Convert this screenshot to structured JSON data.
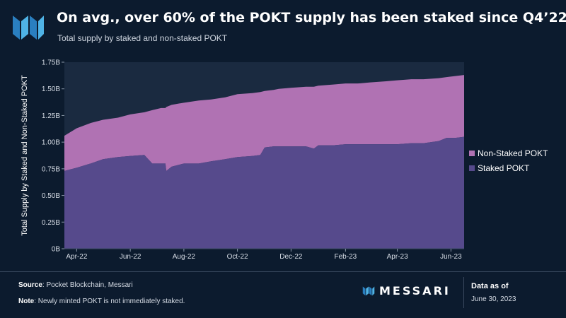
{
  "header": {
    "title": "On avg., over 60% of the POKT supply has been staked since Q4’22",
    "subtitle": "Total supply by staked and non-staked POKT"
  },
  "colors": {
    "background": "#0c1b2e",
    "non_staked": "#b072b3",
    "staked": "#564a8c",
    "accent": "#4fb3e6"
  },
  "chart_data": {
    "type": "area",
    "stacked": true,
    "title": "Total supply by staked and non-staked POKT",
    "ylabel": "Total Supply by Staked and Non-Staked POKT",
    "xlabel": "",
    "ylim": [
      0,
      1.75
    ],
    "xlim": [
      "2022-04-01",
      "2023-06-30"
    ],
    "y_ticks": [
      {
        "value": 0,
        "label": "0B"
      },
      {
        "value": 0.25,
        "label": "0.25B"
      },
      {
        "value": 0.5,
        "label": "0.50B"
      },
      {
        "value": 0.75,
        "label": "0.75B"
      },
      {
        "value": 1.0,
        "label": "1.00B"
      },
      {
        "value": 1.25,
        "label": "1.25B"
      },
      {
        "value": 1.5,
        "label": "1.50B"
      },
      {
        "value": 1.75,
        "label": "1.75B"
      }
    ],
    "x_ticks": [
      {
        "date": "2022-04-15",
        "label": "Apr-22"
      },
      {
        "date": "2022-06-15",
        "label": "Jun-22"
      },
      {
        "date": "2022-08-15",
        "label": "Aug-22"
      },
      {
        "date": "2022-10-15",
        "label": "Oct-22"
      },
      {
        "date": "2022-12-15",
        "label": "Dec-22"
      },
      {
        "date": "2023-02-15",
        "label": "Feb-23"
      },
      {
        "date": "2023-04-15",
        "label": "Apr-23"
      },
      {
        "date": "2023-06-15",
        "label": "Jun-23"
      }
    ],
    "units": "billion POKT",
    "x": [
      "2022-04-01",
      "2022-04-15",
      "2022-05-01",
      "2022-05-15",
      "2022-06-01",
      "2022-06-15",
      "2022-07-01",
      "2022-07-10",
      "2022-07-20",
      "2022-07-25",
      "2022-07-26",
      "2022-08-01",
      "2022-08-15",
      "2022-09-01",
      "2022-09-15",
      "2022-10-01",
      "2022-10-15",
      "2022-11-01",
      "2022-11-10",
      "2022-11-15",
      "2022-11-25",
      "2022-12-01",
      "2022-12-15",
      "2023-01-01",
      "2023-01-10",
      "2023-01-15",
      "2023-02-01",
      "2023-02-15",
      "2023-03-01",
      "2023-03-15",
      "2023-04-01",
      "2023-04-15",
      "2023-05-01",
      "2023-05-15",
      "2023-06-01",
      "2023-06-10",
      "2023-06-20",
      "2023-06-30"
    ],
    "series": [
      {
        "name": "Staked POKT",
        "values": [
          0.73,
          0.76,
          0.8,
          0.84,
          0.86,
          0.87,
          0.88,
          0.8,
          0.8,
          0.8,
          0.73,
          0.77,
          0.8,
          0.8,
          0.82,
          0.84,
          0.86,
          0.87,
          0.88,
          0.95,
          0.96,
          0.96,
          0.96,
          0.96,
          0.94,
          0.97,
          0.97,
          0.98,
          0.98,
          0.98,
          0.98,
          0.98,
          0.99,
          0.99,
          1.01,
          1.04,
          1.04,
          1.05
        ]
      },
      {
        "name": "Non-Staked POKT",
        "values": [
          0.33,
          0.37,
          0.38,
          0.37,
          0.37,
          0.39,
          0.4,
          0.5,
          0.52,
          0.52,
          0.6,
          0.58,
          0.57,
          0.59,
          0.58,
          0.58,
          0.59,
          0.59,
          0.59,
          0.53,
          0.53,
          0.54,
          0.55,
          0.56,
          0.58,
          0.56,
          0.57,
          0.57,
          0.57,
          0.58,
          0.59,
          0.6,
          0.6,
          0.6,
          0.59,
          0.57,
          0.58,
          0.58
        ]
      }
    ],
    "totals": [
      1.06,
      1.13,
      1.18,
      1.21,
      1.23,
      1.26,
      1.28,
      1.3,
      1.32,
      1.32,
      1.33,
      1.35,
      1.37,
      1.39,
      1.4,
      1.42,
      1.45,
      1.46,
      1.47,
      1.48,
      1.49,
      1.5,
      1.51,
      1.52,
      1.52,
      1.53,
      1.54,
      1.55,
      1.55,
      1.56,
      1.57,
      1.58,
      1.59,
      1.59,
      1.6,
      1.61,
      1.62,
      1.63
    ],
    "legend": [
      "Non-Staked POKT",
      "Staked POKT"
    ],
    "legend_position": "right",
    "grid": false
  },
  "footer": {
    "source_label": "Source",
    "source_text": ": Pocket Blockchain, Messari",
    "note_label": "Note",
    "note_text": ": Newly minted POKT is not immediately staked.",
    "brand": "MESSARI",
    "data_as_of_label": "Data as of",
    "data_as_of_date": "June 30, 2023"
  }
}
